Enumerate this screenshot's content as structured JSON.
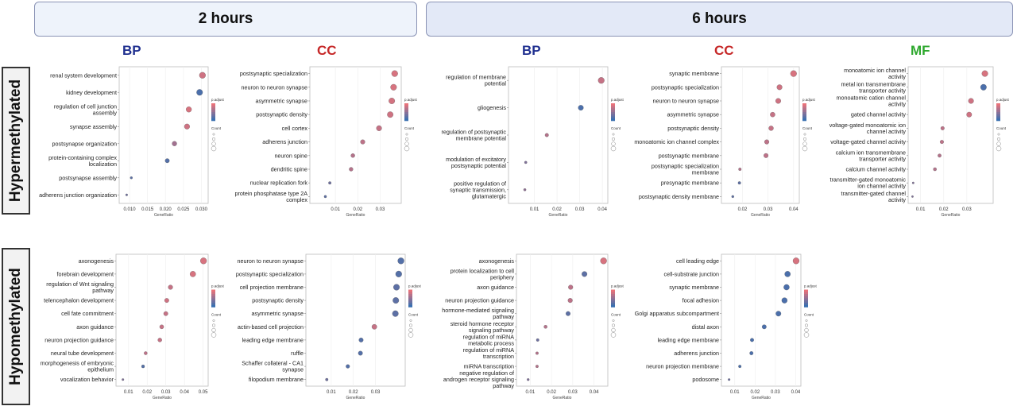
{
  "headers": {
    "two_hours": "2 hours",
    "six_hours": "6 hours"
  },
  "row_labels": {
    "hyper": "Hypermethylated",
    "hypo": "Hypomethylated"
  },
  "ontologies": {
    "bp": "BP",
    "cc": "CC",
    "mf": "MF"
  },
  "colors": {
    "bp": "#1f2f8f",
    "cc": "#c62828",
    "mf": "#2ea82e",
    "low_p": "#e8737a",
    "high_p": "#3a6fb0"
  },
  "chart_data": [
    {
      "id": "hyper-2h-bp",
      "type": "scatter",
      "xlabel": "GeneRatio",
      "legend_title": "p.adjust",
      "size_title": "Count",
      "xlim": [
        0.008,
        0.031
      ],
      "xticks": [
        0.01,
        0.015,
        0.02,
        0.025,
        0.03
      ],
      "xtick_labels": [
        "0.010",
        "0.015",
        "0.020",
        "0.025",
        "0.030"
      ],
      "points": [
        {
          "term": [
            "renal system development"
          ],
          "x": 0.0303,
          "p": 0.15
        },
        {
          "term": [
            "kidney development"
          ],
          "x": 0.0295,
          "p": 0.9
        },
        {
          "term": [
            "regulation of cell junction",
            "assembly"
          ],
          "x": 0.0265,
          "p": 0.1
        },
        {
          "term": [
            "synapse assembly"
          ],
          "x": 0.026,
          "p": 0.15
        },
        {
          "term": [
            "postsynapse organization"
          ],
          "x": 0.0225,
          "p": 0.4
        },
        {
          "term": [
            "protein-containing complex",
            "localization"
          ],
          "x": 0.0205,
          "p": 0.85
        },
        {
          "term": [
            "postsynapse assembly"
          ],
          "x": 0.0105,
          "p": 0.8
        },
        {
          "term": [
            "adherens junction organization"
          ],
          "x": 0.0092,
          "p": 0.7
        }
      ]
    },
    {
      "id": "hyper-2h-cc",
      "type": "scatter",
      "xlabel": "GeneRatio",
      "legend_title": "p.adjust",
      "size_title": "Count",
      "xlim": [
        0.0,
        0.038
      ],
      "xticks": [
        0.01,
        0.02,
        0.03
      ],
      "xtick_labels": [
        "0.01",
        "0.02",
        "0.03"
      ],
      "points": [
        {
          "term": [
            "postsynaptic specialization"
          ],
          "x": 0.0365,
          "p": 0.1
        },
        {
          "term": [
            "neuron to neuron synapse"
          ],
          "x": 0.036,
          "p": 0.1
        },
        {
          "term": [
            "asymmetric synapse"
          ],
          "x": 0.0352,
          "p": 0.12
        },
        {
          "term": [
            "postsynaptic density"
          ],
          "x": 0.0345,
          "p": 0.15
        },
        {
          "term": [
            "cell cortex"
          ],
          "x": 0.0295,
          "p": 0.2
        },
        {
          "term": [
            "adherens junction"
          ],
          "x": 0.0222,
          "p": 0.25
        },
        {
          "term": [
            "neuron spine"
          ],
          "x": 0.0178,
          "p": 0.3
        },
        {
          "term": [
            "dendritic spine"
          ],
          "x": 0.017,
          "p": 0.3
        },
        {
          "term": [
            "nuclear replication fork"
          ],
          "x": 0.0075,
          "p": 0.7
        },
        {
          "term": [
            "protein phosphatase type 2A",
            "complex"
          ],
          "x": 0.0055,
          "p": 0.8
        }
      ]
    },
    {
      "id": "hyper-6h-bp",
      "type": "scatter",
      "xlabel": "GeneRatio",
      "legend_title": "p.adjust",
      "size_title": "Count",
      "xlim": [
        0.0,
        0.041
      ],
      "xticks": [
        0.01,
        0.02,
        0.03,
        0.04
      ],
      "xtick_labels": [
        "0.01",
        "0.02",
        "0.03",
        "0.04"
      ],
      "points": [
        {
          "term": [
            "regulation of membrane",
            "potential"
          ],
          "x": 0.0395,
          "p": 0.2
        },
        {
          "term": [
            "gliogenesis"
          ],
          "x": 0.0305,
          "p": 0.9
        },
        {
          "term": [
            "regulation of postsynaptic",
            "membrane potential"
          ],
          "x": 0.0155,
          "p": 0.3
        },
        {
          "term": [
            "modulation of excitatory",
            "postsynaptic potential"
          ],
          "x": 0.0062,
          "p": 0.6
        },
        {
          "term": [
            "positive regulation of",
            "synaptic transmission,",
            "glutamatergic"
          ],
          "x": 0.0058,
          "p": 0.5
        }
      ]
    },
    {
      "id": "hyper-6h-cc",
      "type": "scatter",
      "xlabel": "GeneRatio",
      "legend_title": "p.adjust",
      "size_title": "Count",
      "xlim": [
        0.013,
        0.041
      ],
      "xticks": [
        0.02,
        0.03,
        0.04
      ],
      "xtick_labels": [
        "0.02",
        "0.03",
        "0.04"
      ],
      "points": [
        {
          "term": [
            "synaptic membrane"
          ],
          "x": 0.04,
          "p": 0.1
        },
        {
          "term": [
            "postsynaptic specialization"
          ],
          "x": 0.0345,
          "p": 0.15
        },
        {
          "term": [
            "neuron to neuron synapse"
          ],
          "x": 0.034,
          "p": 0.15
        },
        {
          "term": [
            "asymmetric synapse"
          ],
          "x": 0.0318,
          "p": 0.2
        },
        {
          "term": [
            "postsynaptic density"
          ],
          "x": 0.0312,
          "p": 0.2
        },
        {
          "term": [
            "monoatomic ion channel complex"
          ],
          "x": 0.0295,
          "p": 0.25
        },
        {
          "term": [
            "postsynaptic membrane"
          ],
          "x": 0.0292,
          "p": 0.25
        },
        {
          "term": [
            "postsynaptic specialization",
            "membrane"
          ],
          "x": 0.019,
          "p": 0.3
        },
        {
          "term": [
            "presynaptic membrane"
          ],
          "x": 0.0188,
          "p": 0.8
        },
        {
          "term": [
            "postsynaptic density membrane"
          ],
          "x": 0.0162,
          "p": 0.8
        }
      ]
    },
    {
      "id": "hyper-6h-mf",
      "type": "scatter",
      "xlabel": "GeneRatio",
      "legend_title": "p.adjust",
      "size_title": "Count",
      "xlim": [
        0.006,
        0.04
      ],
      "xticks": [
        0.01,
        0.02,
        0.03
      ],
      "xtick_labels": [
        "0.01",
        "0.02",
        "0.03"
      ],
      "points": [
        {
          "term": [
            "monoatomic ion channel",
            "activity"
          ],
          "x": 0.0378,
          "p": 0.1
        },
        {
          "term": [
            "metal ion transmembrane",
            "transporter activity"
          ],
          "x": 0.0372,
          "p": 0.9
        },
        {
          "term": [
            "monoatomic cation channel",
            "activity"
          ],
          "x": 0.0318,
          "p": 0.15
        },
        {
          "term": [
            "gated channel activity"
          ],
          "x": 0.031,
          "p": 0.15
        },
        {
          "term": [
            "voltage-gated monoatomic ion",
            "channel activity"
          ],
          "x": 0.0195,
          "p": 0.25
        },
        {
          "term": [
            "voltage-gated channel activity"
          ],
          "x": 0.0192,
          "p": 0.25
        },
        {
          "term": [
            "calcium ion transmembrane",
            "transporter activity"
          ],
          "x": 0.0182,
          "p": 0.3
        },
        {
          "term": [
            "calcium channel activity"
          ],
          "x": 0.0162,
          "p": 0.3
        },
        {
          "term": [
            "transmitter-gated monoatomic",
            "ion channel activity"
          ],
          "x": 0.0068,
          "p": 0.6
        },
        {
          "term": [
            "transmitter-gated channel",
            "activity"
          ],
          "x": 0.0065,
          "p": 0.6
        }
      ]
    },
    {
      "id": "hypo-2h-bp",
      "type": "scatter",
      "xlabel": "GeneRatio",
      "legend_title": "p.adjust",
      "size_title": "Count",
      "xlim": [
        0.005,
        0.051
      ],
      "xticks": [
        0.01,
        0.02,
        0.03,
        0.04,
        0.05
      ],
      "xtick_labels": [
        "0.01",
        "0.02",
        "0.03",
        "0.04",
        "0.05"
      ],
      "points": [
        {
          "term": [
            "axonogenesis"
          ],
          "x": 0.0502,
          "p": 0.1
        },
        {
          "term": [
            "forebrain development"
          ],
          "x": 0.0445,
          "p": 0.1
        },
        {
          "term": [
            "regulation of Wnt signaling",
            "pathway"
          ],
          "x": 0.0325,
          "p": 0.2
        },
        {
          "term": [
            "telencephalon development"
          ],
          "x": 0.0305,
          "p": 0.15
        },
        {
          "term": [
            "cell fate commitment"
          ],
          "x": 0.03,
          "p": 0.2
        },
        {
          "term": [
            "axon guidance"
          ],
          "x": 0.0278,
          "p": 0.2
        },
        {
          "term": [
            "neuron projection guidance"
          ],
          "x": 0.0268,
          "p": 0.2
        },
        {
          "term": [
            "neural tube development"
          ],
          "x": 0.0192,
          "p": 0.25
        },
        {
          "term": [
            "morphogenesis of embryonic",
            "epithelium"
          ],
          "x": 0.0178,
          "p": 0.85
        },
        {
          "term": [
            "vocalization behavior"
          ],
          "x": 0.007,
          "p": 0.6
        }
      ]
    },
    {
      "id": "hypo-2h-cc",
      "type": "scatter",
      "xlabel": "GeneRatio",
      "legend_title": "p.adjust",
      "size_title": "Count",
      "xlim": [
        0.0,
        0.042
      ],
      "xticks": [
        0.01,
        0.02,
        0.03
      ],
      "xtick_labels": [
        "0.01",
        "0.02",
        "0.03"
      ],
      "points": [
        {
          "term": [
            "neuron to neuron synapse"
          ],
          "x": 0.0415,
          "p": 0.85
        },
        {
          "term": [
            "postsynaptic specialization"
          ],
          "x": 0.0405,
          "p": 0.85
        },
        {
          "term": [
            "cell projection membrane"
          ],
          "x": 0.0395,
          "p": 0.8
        },
        {
          "term": [
            "postsynaptic density"
          ],
          "x": 0.0392,
          "p": 0.8
        },
        {
          "term": [
            "asymmetric synapse"
          ],
          "x": 0.039,
          "p": 0.8
        },
        {
          "term": [
            "actin-based cell projection"
          ],
          "x": 0.0295,
          "p": 0.2
        },
        {
          "term": [
            "leading edge membrane"
          ],
          "x": 0.0235,
          "p": 0.85
        },
        {
          "term": [
            "ruffle"
          ],
          "x": 0.0232,
          "p": 0.85
        },
        {
          "term": [
            "Schaffer collateral - CA1",
            "synapse"
          ],
          "x": 0.0175,
          "p": 0.85
        },
        {
          "term": [
            "filopodium membrane"
          ],
          "x": 0.008,
          "p": 0.7
        }
      ]
    },
    {
      "id": "hypo-6h-bp",
      "type": "scatter",
      "xlabel": "GeneRatio",
      "legend_title": "p.adjust",
      "size_title": "Count",
      "xlim": [
        0.005,
        0.045
      ],
      "xticks": [
        0.01,
        0.02,
        0.03,
        0.04
      ],
      "xtick_labels": [
        "0.01",
        "0.02",
        "0.03",
        "0.04"
      ],
      "points": [
        {
          "term": [
            "axonogenesis"
          ],
          "x": 0.0445,
          "p": 0.1
        },
        {
          "term": [
            "protein localization to cell",
            "periphery"
          ],
          "x": 0.0355,
          "p": 0.8
        },
        {
          "term": [
            "axon guidance"
          ],
          "x": 0.029,
          "p": 0.25
        },
        {
          "term": [
            "neuron projection guidance"
          ],
          "x": 0.0288,
          "p": 0.25
        },
        {
          "term": [
            "hormone-mediated signaling",
            "pathway"
          ],
          "x": 0.0278,
          "p": 0.8
        },
        {
          "term": [
            "steroid hormone receptor",
            "signaling pathway"
          ],
          "x": 0.0172,
          "p": 0.3
        },
        {
          "term": [
            "regulation of miRNA",
            "metabolic process"
          ],
          "x": 0.0135,
          "p": 0.7
        },
        {
          "term": [
            "regulation of miRNA",
            "transcription"
          ],
          "x": 0.0132,
          "p": 0.3
        },
        {
          "term": [
            "miRNA transcription"
          ],
          "x": 0.0132,
          "p": 0.3
        },
        {
          "term": [
            "negative regulation of",
            "androgen receptor signaling",
            "pathway"
          ],
          "x": 0.009,
          "p": 0.6
        }
      ]
    },
    {
      "id": "hypo-6h-cc",
      "type": "scatter",
      "xlabel": "GeneRatio",
      "legend_title": "p.adjust",
      "size_title": "Count",
      "xlim": [
        0.005,
        0.041
      ],
      "xticks": [
        0.01,
        0.02,
        0.03,
        0.04
      ],
      "xtick_labels": [
        "0.01",
        "0.02",
        "0.03",
        "0.04"
      ],
      "points": [
        {
          "term": [
            "cell leading edge"
          ],
          "x": 0.0402,
          "p": 0.1
        },
        {
          "term": [
            "cell-substrate junction"
          ],
          "x": 0.036,
          "p": 0.9
        },
        {
          "term": [
            "synaptic membrane"
          ],
          "x": 0.0355,
          "p": 0.9
        },
        {
          "term": [
            "focal adhesion"
          ],
          "x": 0.0345,
          "p": 0.9
        },
        {
          "term": [
            "Golgi apparatus subcompartment"
          ],
          "x": 0.0315,
          "p": 0.9
        },
        {
          "term": [
            "distal axon"
          ],
          "x": 0.0245,
          "p": 0.9
        },
        {
          "term": [
            "leading edge membrane"
          ],
          "x": 0.0185,
          "p": 0.9
        },
        {
          "term": [
            "adherens junction"
          ],
          "x": 0.0182,
          "p": 0.9
        },
        {
          "term": [
            "neuron projection membrane"
          ],
          "x": 0.0125,
          "p": 0.9
        },
        {
          "term": [
            "podosome"
          ],
          "x": 0.0072,
          "p": 0.7
        }
      ]
    }
  ]
}
